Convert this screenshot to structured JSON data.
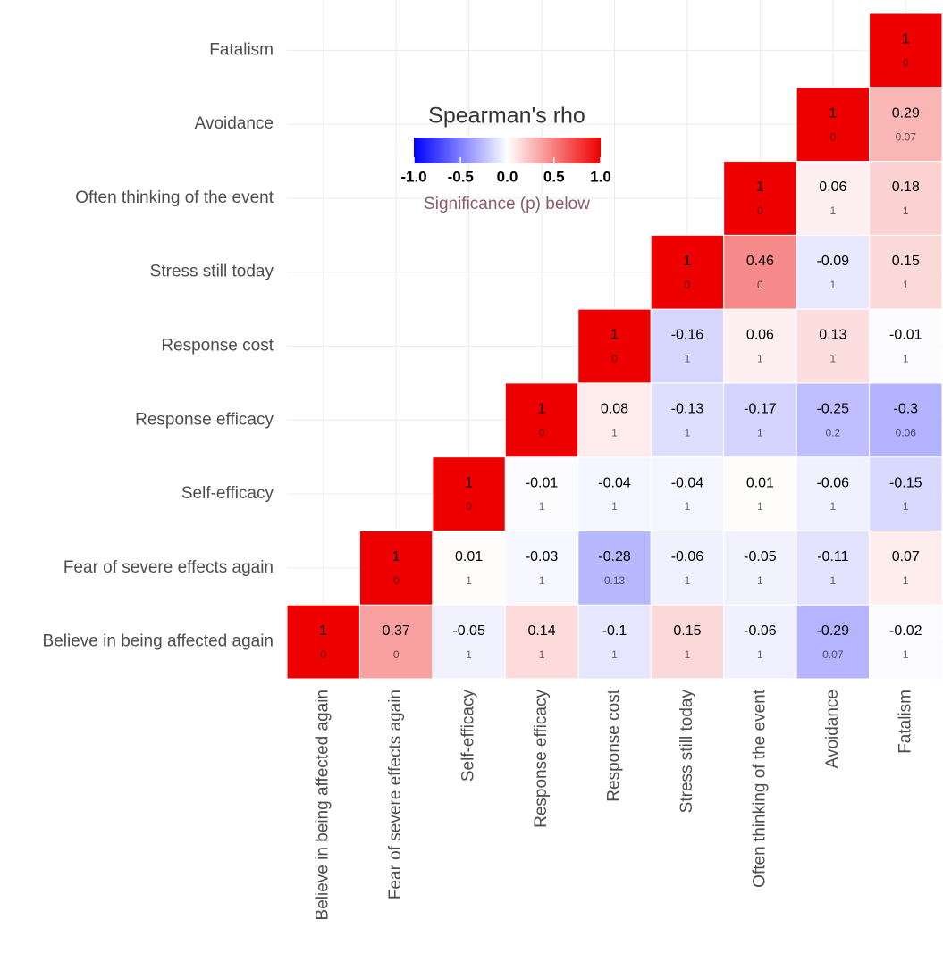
{
  "chart_data": {
    "type": "heatmap",
    "variables": [
      "Believe in being affected again",
      "Fear of severe effects again",
      "Self-efficacy",
      "Response efficacy",
      "Response cost",
      "Stress still today",
      "Often thinking of the event",
      "Avoidance",
      "Fatalism"
    ],
    "rho": [
      [
        1,
        0.37,
        -0.05,
        0.14,
        -0.1,
        0.15,
        -0.06,
        -0.29,
        -0.02
      ],
      [
        null,
        1,
        0.01,
        -0.03,
        -0.28,
        -0.06,
        -0.05,
        -0.11,
        0.07
      ],
      [
        null,
        null,
        1,
        -0.01,
        -0.04,
        -0.04,
        0.01,
        -0.06,
        -0.15
      ],
      [
        null,
        null,
        null,
        1,
        0.08,
        -0.13,
        -0.17,
        -0.25,
        -0.3
      ],
      [
        null,
        null,
        null,
        null,
        1,
        -0.16,
        0.06,
        0.13,
        -0.01
      ],
      [
        null,
        null,
        null,
        null,
        null,
        1,
        0.46,
        -0.09,
        0.15
      ],
      [
        null,
        null,
        null,
        null,
        null,
        null,
        1,
        0.06,
        0.18
      ],
      [
        null,
        null,
        null,
        null,
        null,
        null,
        null,
        1,
        0.29
      ],
      [
        null,
        null,
        null,
        null,
        null,
        null,
        null,
        null,
        1
      ]
    ],
    "p": [
      [
        0,
        0,
        1,
        1,
        1,
        1,
        1,
        0.07,
        1
      ],
      [
        null,
        0,
        1,
        1,
        0.13,
        1,
        1,
        1,
        1
      ],
      [
        null,
        null,
        0,
        1,
        1,
        1,
        1,
        1,
        1
      ],
      [
        null,
        null,
        null,
        0,
        1,
        1,
        1,
        0.2,
        0.06
      ],
      [
        null,
        null,
        null,
        null,
        0,
        1,
        1,
        1,
        1
      ],
      [
        null,
        null,
        null,
        null,
        null,
        0,
        0,
        1,
        1
      ],
      [
        null,
        null,
        null,
        null,
        null,
        null,
        0,
        1,
        1
      ],
      [
        null,
        null,
        null,
        null,
        null,
        null,
        null,
        0,
        0.07
      ],
      [
        null,
        null,
        null,
        null,
        null,
        null,
        null,
        null,
        0
      ]
    ],
    "legend_title": "Spearman's rho",
    "legend_subtitle": "Significance (p) below",
    "colorscale": {
      "low": "#0000ff",
      "mid": "#ffffff",
      "high": "#ee0000"
    },
    "colorlim": [
      -1,
      1
    ],
    "colorticks": [
      {
        "value": -1,
        "label": "-1.0"
      },
      -0.5,
      {
        "value": 0,
        "label": "0.0"
      },
      0.5,
      {
        "value": 1,
        "label": "1.0"
      }
    ],
    "grid": true
  }
}
